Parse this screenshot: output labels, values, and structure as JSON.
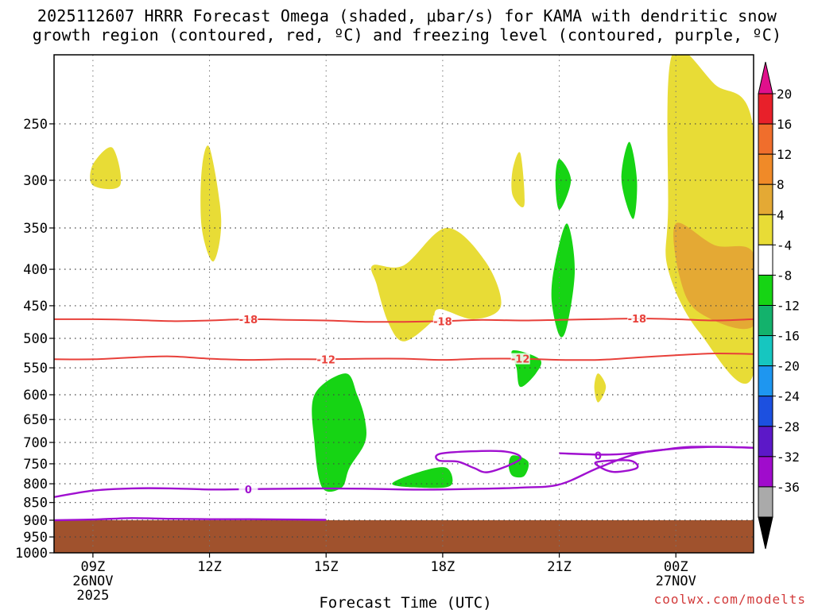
{
  "chart_data": {
    "type": "time-height cross-section",
    "title_line1": "2025112607 HRRR Forecast Omega (shaded, μbar/s) for KAMA with dendritic snow",
    "title_line2": "growth region (contoured, red, ºC) and freezing level (contoured, purple, ºC)",
    "xlabel": "Forecast Time (UTC)",
    "ylabel": "",
    "x_range_hours_since_08Z": [
      0,
      18
    ],
    "y_range_hPa": [
      200,
      1000
    ],
    "y_ticks": [
      250,
      300,
      350,
      400,
      450,
      500,
      550,
      600,
      650,
      700,
      750,
      800,
      850,
      900,
      950,
      1000
    ],
    "x_ticks": [
      {
        "hour": 1,
        "label": "09Z",
        "sub1": "26NOV",
        "sub2": "2025"
      },
      {
        "hour": 4,
        "label": "12Z",
        "sub1": "",
        "sub2": ""
      },
      {
        "hour": 7,
        "label": "15Z",
        "sub1": "",
        "sub2": ""
      },
      {
        "hour": 10,
        "label": "18Z",
        "sub1": "",
        "sub2": ""
      },
      {
        "hour": 13,
        "label": "21Z",
        "sub1": "",
        "sub2": ""
      },
      {
        "hour": 16,
        "label": "00Z",
        "sub1": "27NOV",
        "sub2": ""
      }
    ],
    "colorbar": {
      "labels": [
        "20",
        "16",
        "12",
        "8",
        "4",
        "-4",
        "-8",
        "-12",
        "-16",
        "-20",
        "-24",
        "-28",
        "-32",
        "-36"
      ],
      "colors": [
        "#e8202a",
        "#f06e2c",
        "#f08a28",
        "#e4a934",
        "#e8dc36",
        "#ffffff",
        "#16d414",
        "#13b26c",
        "#16c6c0",
        "#1e96f0",
        "#1c50e0",
        "#5c18c8",
        "#a00ccc",
        "#aaaaaa"
      ],
      "top_arrow_color": "#e0108c",
      "bottom_arrow_color": "#000000"
    },
    "temperature_contours": [
      {
        "label": "-18",
        "color": "#e8403a",
        "levels_hPa": [
          470,
          470,
          471,
          473,
          472,
          470,
          471,
          472,
          474,
          474,
          473,
          471,
          472,
          471,
          470,
          469,
          470,
          472,
          470
        ]
      },
      {
        "label": "-12",
        "color": "#e8403a",
        "levels_hPa": [
          535,
          535,
          532,
          530,
          534,
          536,
          535,
          535,
          534,
          534,
          536,
          534,
          534,
          536,
          536,
          532,
          528,
          525,
          526
        ]
      }
    ],
    "freezing_level": {
      "label": "0",
      "color": "#a010d0",
      "levels_hPa": [
        835,
        818,
        812,
        812,
        815,
        814,
        813,
        812,
        813,
        815,
        815,
        813,
        810,
        802,
        760,
        726,
        714,
        710,
        712
      ]
    },
    "freezing_level_low": {
      "color": "#a010d0",
      "levels_hPa": [
        900,
        898,
        894,
        896,
        897,
        897,
        898,
        899
      ]
    },
    "omega_regions": [
      {
        "sign": "rising",
        "value_band": "4 to 8",
        "hours": [
          [
            1.5,
            270
          ],
          [
            1.7,
            305
          ],
          [
            1.0,
            305
          ],
          [
            1.0,
            285
          ]
        ]
      },
      {
        "sign": "rising",
        "value_band": "4 to 8",
        "hours": [
          [
            4.0,
            270
          ],
          [
            4.3,
            340
          ],
          [
            4.1,
            390
          ],
          [
            3.8,
            350
          ],
          [
            3.8,
            290
          ]
        ]
      },
      {
        "sign": "rising",
        "value_band": "4 to 8",
        "hours": [
          [
            8.2,
            395
          ],
          [
            9.0,
            395
          ],
          [
            10.1,
            350
          ],
          [
            11.1,
            390
          ],
          [
            11.5,
            450
          ],
          [
            10.8,
            470
          ],
          [
            9.9,
            455
          ],
          [
            9.7,
            475
          ],
          [
            9.0,
            505
          ],
          [
            8.6,
            475
          ],
          [
            8.3,
            420
          ]
        ]
      },
      {
        "sign": "rising",
        "value_band": "4 to 8",
        "hours": [
          [
            12.0,
            275
          ],
          [
            12.1,
            325
          ],
          [
            11.8,
            315
          ],
          [
            11.8,
            290
          ]
        ]
      },
      {
        "sign": "rising",
        "value_band": "4 to 8",
        "hours": [
          [
            15.9,
            200
          ],
          [
            17.0,
            220
          ],
          [
            18.0,
            255
          ],
          [
            18.0,
            560
          ],
          [
            16.6,
            490
          ],
          [
            15.8,
            400
          ],
          [
            15.8,
            330
          ]
        ]
      },
      {
        "sign": "rising",
        "value_band": "8 to 12",
        "hours": [
          [
            16.0,
            345
          ],
          [
            17.0,
            370
          ],
          [
            18.0,
            380
          ],
          [
            18.0,
            480
          ],
          [
            16.6,
            460
          ],
          [
            16.1,
            410
          ]
        ]
      },
      {
        "sign": "rising",
        "value_band": "4 to 8",
        "hours": [
          [
            14.0,
            560
          ],
          [
            14.2,
            585
          ],
          [
            14.0,
            615
          ],
          [
            13.9,
            585
          ]
        ]
      },
      {
        "sign": "sinking",
        "value_band": "-4 to -8",
        "hours": [
          [
            13.0,
            280
          ],
          [
            13.3,
            300
          ],
          [
            13.0,
            330
          ],
          [
            12.9,
            300
          ]
        ]
      },
      {
        "sign": "sinking",
        "value_band": "-4 to -8",
        "hours": [
          [
            14.8,
            265
          ],
          [
            15.0,
            300
          ],
          [
            14.9,
            340
          ],
          [
            14.6,
            300
          ]
        ]
      },
      {
        "sign": "sinking",
        "value_band": "-4 to -8",
        "hours": [
          [
            13.2,
            345
          ],
          [
            13.4,
            400
          ],
          [
            13.2,
            480
          ],
          [
            13.0,
            495
          ],
          [
            12.8,
            440
          ],
          [
            12.9,
            390
          ]
        ]
      },
      {
        "sign": "sinking",
        "value_band": "-4 to -8",
        "hours": [
          [
            7.5,
            560
          ],
          [
            7.8,
            600
          ],
          [
            8.0,
            650
          ],
          [
            8.0,
            700
          ],
          [
            7.6,
            760
          ],
          [
            7.4,
            810
          ],
          [
            6.9,
            810
          ],
          [
            6.7,
            700
          ],
          [
            6.7,
            600
          ]
        ]
      },
      {
        "sign": "sinking",
        "value_band": "-4 to -8",
        "hours": [
          [
            8.7,
            800
          ],
          [
            9.4,
            770
          ],
          [
            10.1,
            760
          ],
          [
            10.2,
            805
          ],
          [
            9.4,
            810
          ]
        ]
      },
      {
        "sign": "sinking",
        "value_band": "-4 to -8",
        "hours": [
          [
            11.8,
            520
          ],
          [
            12.5,
            535
          ],
          [
            12.4,
            560
          ],
          [
            12.0,
            585
          ],
          [
            11.9,
            550
          ]
        ]
      },
      {
        "sign": "sinking",
        "value_band": "-4 to -8",
        "hours": [
          [
            11.8,
            730
          ],
          [
            12.2,
            745
          ],
          [
            12.1,
            780
          ],
          [
            11.8,
            780
          ],
          [
            11.7,
            755
          ]
        ]
      }
    ],
    "terrain_top_hPa": 900
  },
  "credit": "coolwx.com/modelts"
}
